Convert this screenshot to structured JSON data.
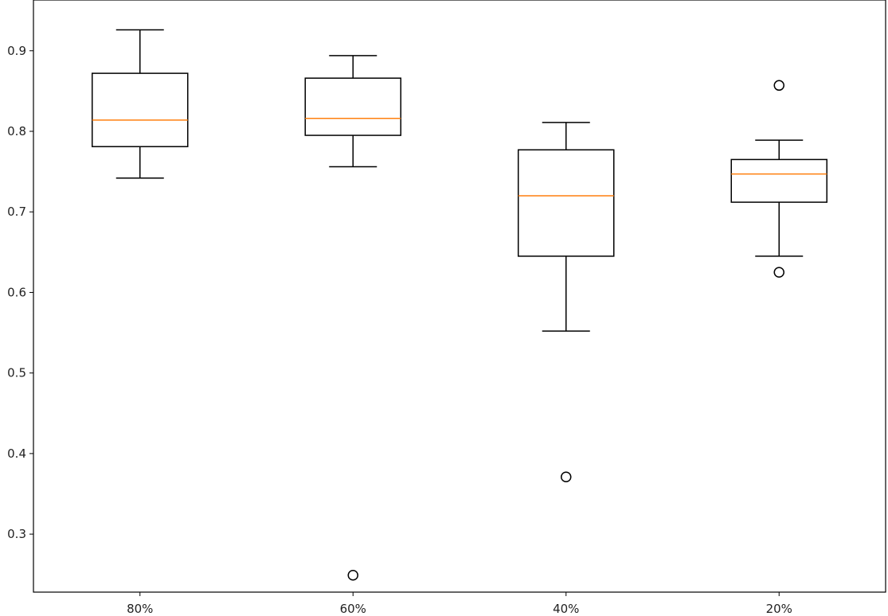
{
  "chart_data": {
    "type": "box",
    "title": "",
    "xlabel": "",
    "ylabel": "",
    "categories": [
      "80%",
      "60%",
      "40%",
      "20%"
    ],
    "ylim": [
      0.228,
      0.963
    ],
    "yticks": [
      0.3,
      0.4,
      0.5,
      0.6,
      0.7,
      0.8,
      0.9
    ],
    "ytick_labels": [
      "0.3",
      "0.4",
      "0.5",
      "0.6",
      "0.7",
      "0.8",
      "0.9"
    ],
    "grid": false,
    "legend": "none",
    "boxes": [
      {
        "label": "80%",
        "whisker_low": 0.742,
        "q1": 0.781,
        "median": 0.814,
        "q3": 0.872,
        "whisker_high": 0.926,
        "outliers": []
      },
      {
        "label": "60%",
        "whisker_low": 0.756,
        "q1": 0.795,
        "median": 0.816,
        "q3": 0.866,
        "whisker_high": 0.894,
        "outliers": [
          0.249
        ]
      },
      {
        "label": "40%",
        "whisker_low": 0.552,
        "q1": 0.645,
        "median": 0.72,
        "q3": 0.777,
        "whisker_high": 0.811,
        "outliers": [
          0.371
        ]
      },
      {
        "label": "20%",
        "whisker_low": 0.645,
        "q1": 0.712,
        "median": 0.747,
        "q3": 0.765,
        "whisker_high": 0.789,
        "outliers": [
          0.625,
          0.857
        ]
      }
    ],
    "colors": {
      "box": "#000000",
      "median": "#ff7f0e",
      "outlier": "#000000",
      "axis": "#000000"
    }
  }
}
